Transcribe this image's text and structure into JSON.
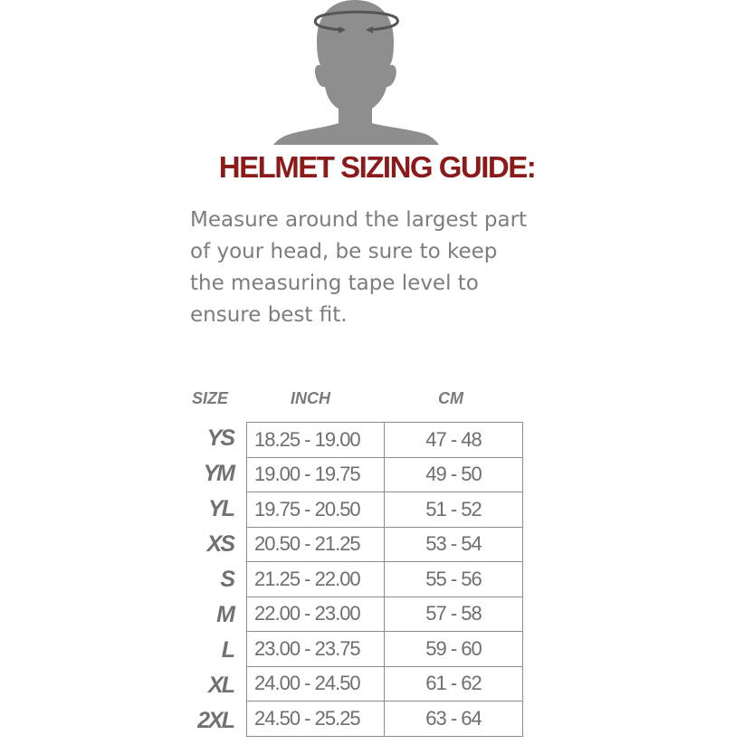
{
  "title": "HELMET SIZING GUIDE:",
  "intro": [
    "Measure around the largest part",
    "of your head, be sure to keep",
    "the measuring tape level to",
    "ensure best fit."
  ],
  "table": {
    "headers": {
      "size": "SIZE",
      "inch": "INCH",
      "cm": "CM"
    },
    "rows": [
      {
        "size": "YS",
        "inch": "18.25 - 19.00",
        "cm": "47 - 48"
      },
      {
        "size": "YM",
        "inch": "19.00 - 19.75",
        "cm": "49 - 50"
      },
      {
        "size": "YL",
        "inch": "19.75 - 20.50",
        "cm": "51 - 52"
      },
      {
        "size": "XS",
        "inch": "20.50 - 21.25",
        "cm": "53 - 54"
      },
      {
        "size": "S",
        "inch": "21.25 - 22.00",
        "cm": "55 - 56"
      },
      {
        "size": "M",
        "inch": "22.00 - 23.00",
        "cm": "57 - 58"
      },
      {
        "size": "L",
        "inch": "23.00 - 23.75",
        "cm": "59 - 60"
      },
      {
        "size": "XL",
        "inch": "24.00 - 24.50",
        "cm": "61 - 62"
      },
      {
        "size": "2XL",
        "inch": "24.50 - 25.25",
        "cm": "63 - 64"
      }
    ]
  },
  "colors": {
    "title": "#8b1a1a",
    "silhouette": "#8e8e8e",
    "text": "#7e7c7c"
  },
  "icons": {
    "illustration": "head-measurement-silhouette-icon"
  }
}
